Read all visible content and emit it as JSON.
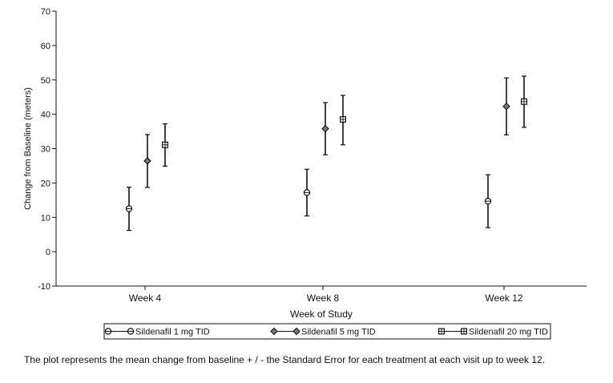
{
  "chart_data": {
    "type": "errorbar",
    "title": "",
    "xlabel": "Week of Study",
    "ylabel": "Change from Baseline (meters)",
    "ylim": [
      -10,
      70
    ],
    "yticks": [
      -10,
      0,
      10,
      20,
      30,
      40,
      50,
      60,
      70
    ],
    "categories": [
      "Week 4",
      "Week 8",
      "Week 12"
    ],
    "series": [
      {
        "name": "Sildenafil 1 mg TID",
        "marker": "circle",
        "mean": [
          12.5,
          17.2,
          14.7
        ],
        "lower": [
          6.2,
          10.4,
          7.0
        ],
        "upper": [
          18.8,
          24.0,
          22.4
        ]
      },
      {
        "name": "Sildenafil 5 mg TID",
        "marker": "diamond",
        "mean": [
          26.4,
          35.8,
          42.3
        ],
        "lower": [
          18.7,
          28.2,
          34.0
        ],
        "upper": [
          34.1,
          43.4,
          50.6
        ]
      },
      {
        "name": "Sildenafil 20 mg TID",
        "marker": "square",
        "mean": [
          31.1,
          38.5,
          43.7
        ],
        "lower": [
          24.9,
          31.1,
          36.2
        ],
        "upper": [
          37.2,
          45.5,
          51.1
        ]
      }
    ],
    "legend_position": "bottom",
    "grid": false
  },
  "caption": "The plot represents the mean change from baseline + / - the Standard Error for each treatment at each visit up to week 12."
}
